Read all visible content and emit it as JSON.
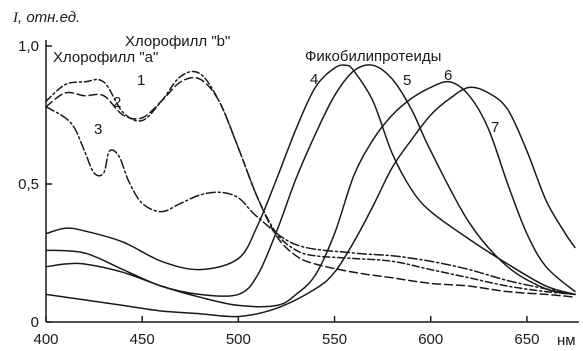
{
  "chart_data": {
    "type": "line",
    "ylabel_symbol": "I",
    "ylabel_rest": ", отн.ед.",
    "xunit": "нм",
    "xlim": [
      400,
      675
    ],
    "ylim": [
      0,
      1.0
    ],
    "x_ticks": [
      {
        "value": 400,
        "label": "400"
      },
      {
        "value": 450,
        "label": "450"
      },
      {
        "value": 500,
        "label": "500"
      },
      {
        "value": 550,
        "label": "550"
      },
      {
        "value": 600,
        "label": "600"
      },
      {
        "value": 650,
        "label": "650"
      }
    ],
    "y_ticks": [
      {
        "value": 0,
        "label": "0"
      },
      {
        "value": 0.5,
        "label": "0,5"
      },
      {
        "value": 1.0,
        "label": "1,0"
      }
    ],
    "annotations": {
      "chl_a": "Хлорофилл \"a\"",
      "chl_b": "Хлорофилл \"b\"",
      "phyco": "Фикобилипротеиды"
    },
    "series": [
      {
        "name": "1",
        "dash": "7,3,2,3",
        "x": [
          400,
          410,
          420,
          430,
          440,
          450,
          460,
          470,
          480,
          490,
          500,
          510,
          520,
          530,
          540,
          560,
          580,
          600,
          620,
          640,
          660,
          675
        ],
        "y": [
          0.8,
          0.86,
          0.87,
          0.87,
          0.76,
          0.73,
          0.8,
          0.89,
          0.9,
          0.8,
          0.63,
          0.45,
          0.32,
          0.26,
          0.24,
          0.23,
          0.22,
          0.19,
          0.16,
          0.13,
          0.11,
          0.1
        ]
      },
      {
        "name": "2",
        "dash": "8,4",
        "x": [
          400,
          410,
          420,
          430,
          440,
          450,
          460,
          470,
          480,
          490,
          500,
          510,
          520,
          530,
          540,
          560,
          580,
          600,
          620,
          640,
          660,
          675
        ],
        "y": [
          0.78,
          0.83,
          0.82,
          0.82,
          0.75,
          0.74,
          0.8,
          0.87,
          0.88,
          0.8,
          0.63,
          0.45,
          0.31,
          0.24,
          0.21,
          0.18,
          0.16,
          0.14,
          0.13,
          0.11,
          0.1,
          0.09
        ]
      },
      {
        "name": "3",
        "dash": "9,3,2,3",
        "x": [
          400,
          410,
          415,
          420,
          425,
          430,
          433,
          438,
          443,
          450,
          460,
          470,
          480,
          490,
          500,
          510,
          530,
          560,
          580,
          600,
          620,
          640,
          660,
          675
        ],
        "y": [
          0.78,
          0.74,
          0.7,
          0.62,
          0.54,
          0.54,
          0.62,
          0.6,
          0.51,
          0.43,
          0.4,
          0.43,
          0.46,
          0.47,
          0.45,
          0.38,
          0.28,
          0.25,
          0.24,
          0.22,
          0.19,
          0.15,
          0.12,
          0.1
        ]
      },
      {
        "name": "4",
        "dash": "",
        "x": [
          400,
          410,
          420,
          440,
          460,
          480,
          500,
          510,
          520,
          530,
          540,
          550,
          556,
          560,
          570,
          580,
          590,
          600,
          620,
          640,
          660,
          675
        ],
        "y": [
          0.32,
          0.34,
          0.33,
          0.29,
          0.22,
          0.19,
          0.23,
          0.35,
          0.52,
          0.7,
          0.85,
          0.92,
          0.93,
          0.91,
          0.8,
          0.61,
          0.48,
          0.4,
          0.3,
          0.21,
          0.13,
          0.1
        ]
      },
      {
        "name": "5",
        "dash": "",
        "x": [
          400,
          420,
          440,
          460,
          480,
          500,
          510,
          520,
          530,
          540,
          550,
          560,
          570,
          580,
          590,
          600,
          620,
          640,
          660,
          675
        ],
        "y": [
          0.26,
          0.25,
          0.19,
          0.13,
          0.1,
          0.1,
          0.17,
          0.33,
          0.52,
          0.68,
          0.82,
          0.91,
          0.93,
          0.88,
          0.77,
          0.62,
          0.36,
          0.2,
          0.12,
          0.1
        ]
      },
      {
        "name": "6",
        "dash": "",
        "x": [
          400,
          410,
          420,
          440,
          460,
          480,
          500,
          520,
          530,
          540,
          550,
          560,
          570,
          580,
          590,
          600,
          610,
          620,
          630,
          640,
          650,
          660,
          675
        ],
        "y": [
          0.2,
          0.21,
          0.21,
          0.18,
          0.13,
          0.09,
          0.06,
          0.06,
          0.1,
          0.17,
          0.32,
          0.53,
          0.66,
          0.75,
          0.81,
          0.85,
          0.87,
          0.82,
          0.7,
          0.5,
          0.32,
          0.2,
          0.11
        ]
      },
      {
        "name": "7",
        "dash": "",
        "x": [
          400,
          420,
          440,
          460,
          480,
          500,
          520,
          540,
          550,
          560,
          570,
          580,
          590,
          600,
          610,
          620,
          630,
          640,
          650,
          660,
          670,
          675
        ],
        "y": [
          0.1,
          0.08,
          0.06,
          0.04,
          0.03,
          0.02,
          0.05,
          0.12,
          0.18,
          0.29,
          0.42,
          0.56,
          0.66,
          0.75,
          0.81,
          0.85,
          0.83,
          0.77,
          0.62,
          0.44,
          0.32,
          0.27
        ]
      }
    ]
  }
}
